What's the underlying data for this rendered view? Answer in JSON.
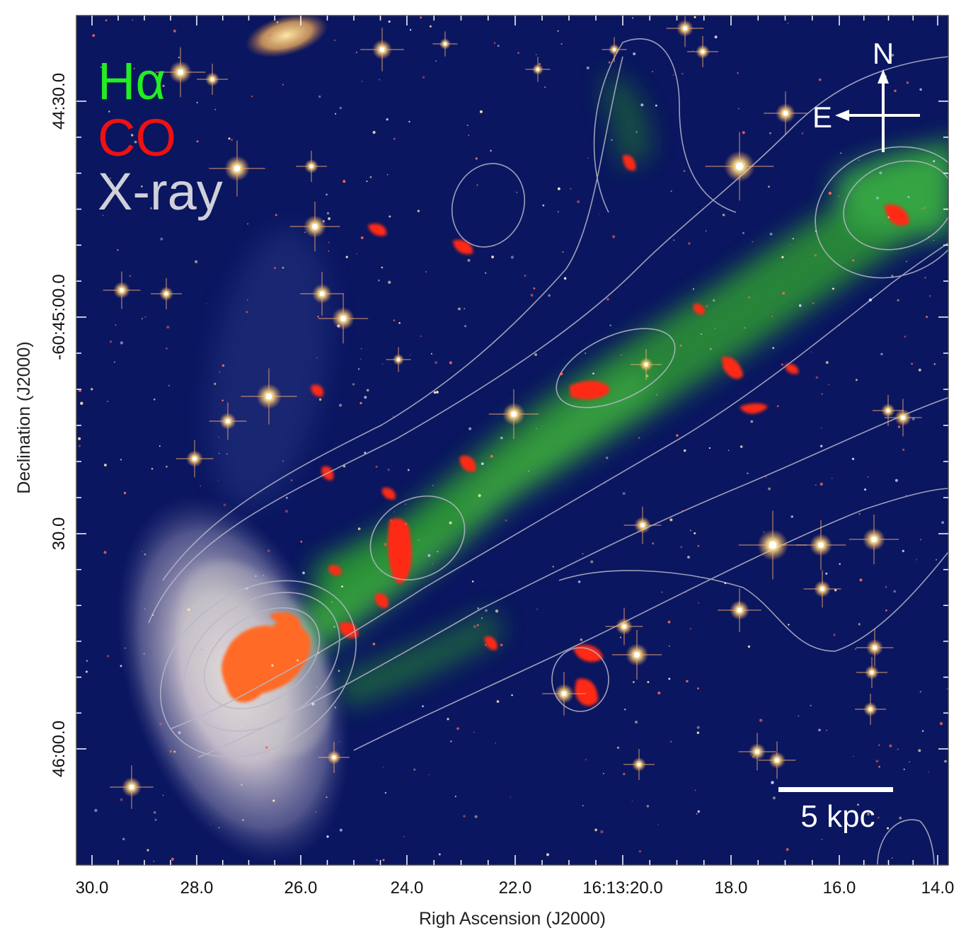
{
  "legend": {
    "items": [
      {
        "label": "Hα",
        "color": "#22ee22"
      },
      {
        "label": "CO",
        "color": "#ee1111"
      },
      {
        "label": "X-ray",
        "color": "#d0d0d8"
      }
    ]
  },
  "compass": {
    "north": "N",
    "east": "E"
  },
  "scale_bar": {
    "label": "5 kpc"
  },
  "axes": {
    "xlabel": "Righ Ascension (J2000)",
    "ylabel": "Declination (J2000)",
    "x_ticks": [
      "30.0",
      "28.0",
      "26.0",
      "24.0",
      "22.0",
      "16:13:20.0",
      "18.0",
      "16.0",
      "14.0"
    ],
    "y_ticks": [
      "44:30.0",
      "-60:45:00.0",
      "30.0",
      "46:00.0"
    ]
  },
  "image": {
    "description_icon": "galaxy-ram-pressure-tail-image",
    "colors": {
      "background": "#0a1660",
      "halpha": "#33c833",
      "co": "#ee2a1a",
      "xray_contour": "#b8b8c8",
      "galaxy_disk": "#d8d0d4"
    }
  }
}
